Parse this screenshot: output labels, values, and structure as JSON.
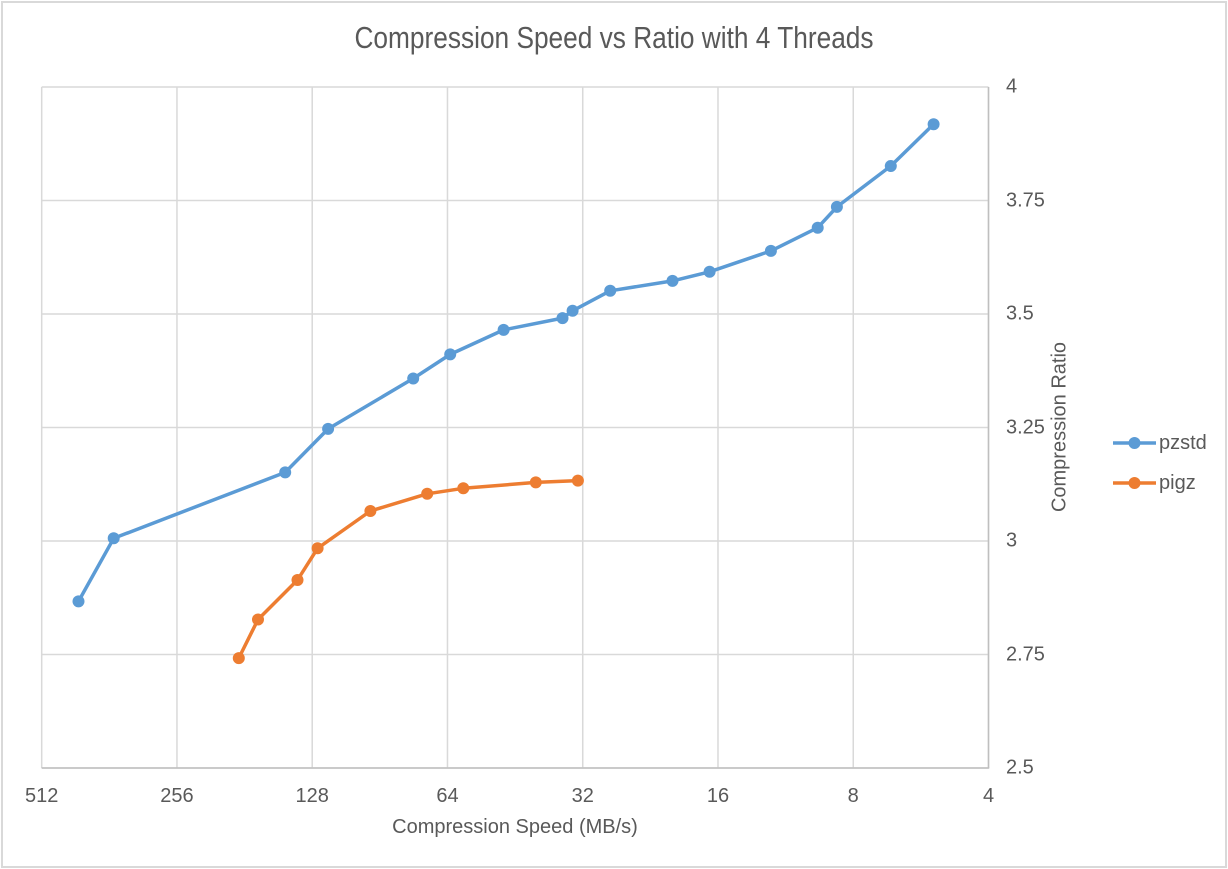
{
  "chart_data": {
    "type": "line",
    "title": "Compression Speed vs Ratio with 4 Threads",
    "xlabel": "Compression Speed (MB/s)",
    "ylabel": "Compression Ratio",
    "x_axis": {
      "scale": "log2",
      "reversed": true,
      "ticks": [
        512,
        256,
        128,
        64,
        32,
        16,
        8,
        4
      ],
      "tick_labels": [
        "512",
        "256",
        "128",
        "64",
        "32",
        "16",
        "8",
        "4"
      ],
      "range": [
        512,
        4
      ]
    },
    "y_axis": {
      "scale": "linear",
      "side": "right",
      "ticks": [
        4,
        3.75,
        3.5,
        3.25,
        3,
        2.75,
        2.5
      ],
      "tick_labels": [
        "4",
        "3.75",
        "3.5",
        "3.25",
        "3",
        "2.75",
        "2.5"
      ],
      "range": [
        2.5,
        4
      ]
    },
    "grid": true,
    "legend_position": "right",
    "series": [
      {
        "name": "pzstd",
        "color": "#5B9BD5",
        "points": [
          [
            424,
            2.867
          ],
          [
            354,
            3.006
          ],
          [
            147,
            3.151
          ],
          [
            118,
            3.247
          ],
          [
            76.3,
            3.358
          ],
          [
            63.1,
            3.411
          ],
          [
            48.0,
            3.465
          ],
          [
            35.5,
            3.491
          ],
          [
            33.7,
            3.507
          ],
          [
            27.8,
            3.551
          ],
          [
            20.2,
            3.573
          ],
          [
            16.7,
            3.593
          ],
          [
            12.2,
            3.639
          ],
          [
            9.6,
            3.69
          ],
          [
            8.7,
            3.736
          ],
          [
            6.6,
            3.826
          ],
          [
            5.3,
            3.918
          ]
        ]
      },
      {
        "name": "pigz",
        "color": "#ED7D31",
        "points": [
          [
            186.5,
            2.742
          ],
          [
            169,
            2.827
          ],
          [
            138,
            2.914
          ],
          [
            124.5,
            2.984
          ],
          [
            95,
            3.066
          ],
          [
            71,
            3.104
          ],
          [
            59,
            3.116
          ],
          [
            40.7,
            3.129
          ],
          [
            32.8,
            3.133
          ]
        ]
      }
    ],
    "colors": {
      "gridline": "#d9d9d9",
      "axis_line": "#bfbfbf",
      "text": "#595959",
      "background": "#ffffff",
      "border": "#d9d9d9"
    }
  }
}
